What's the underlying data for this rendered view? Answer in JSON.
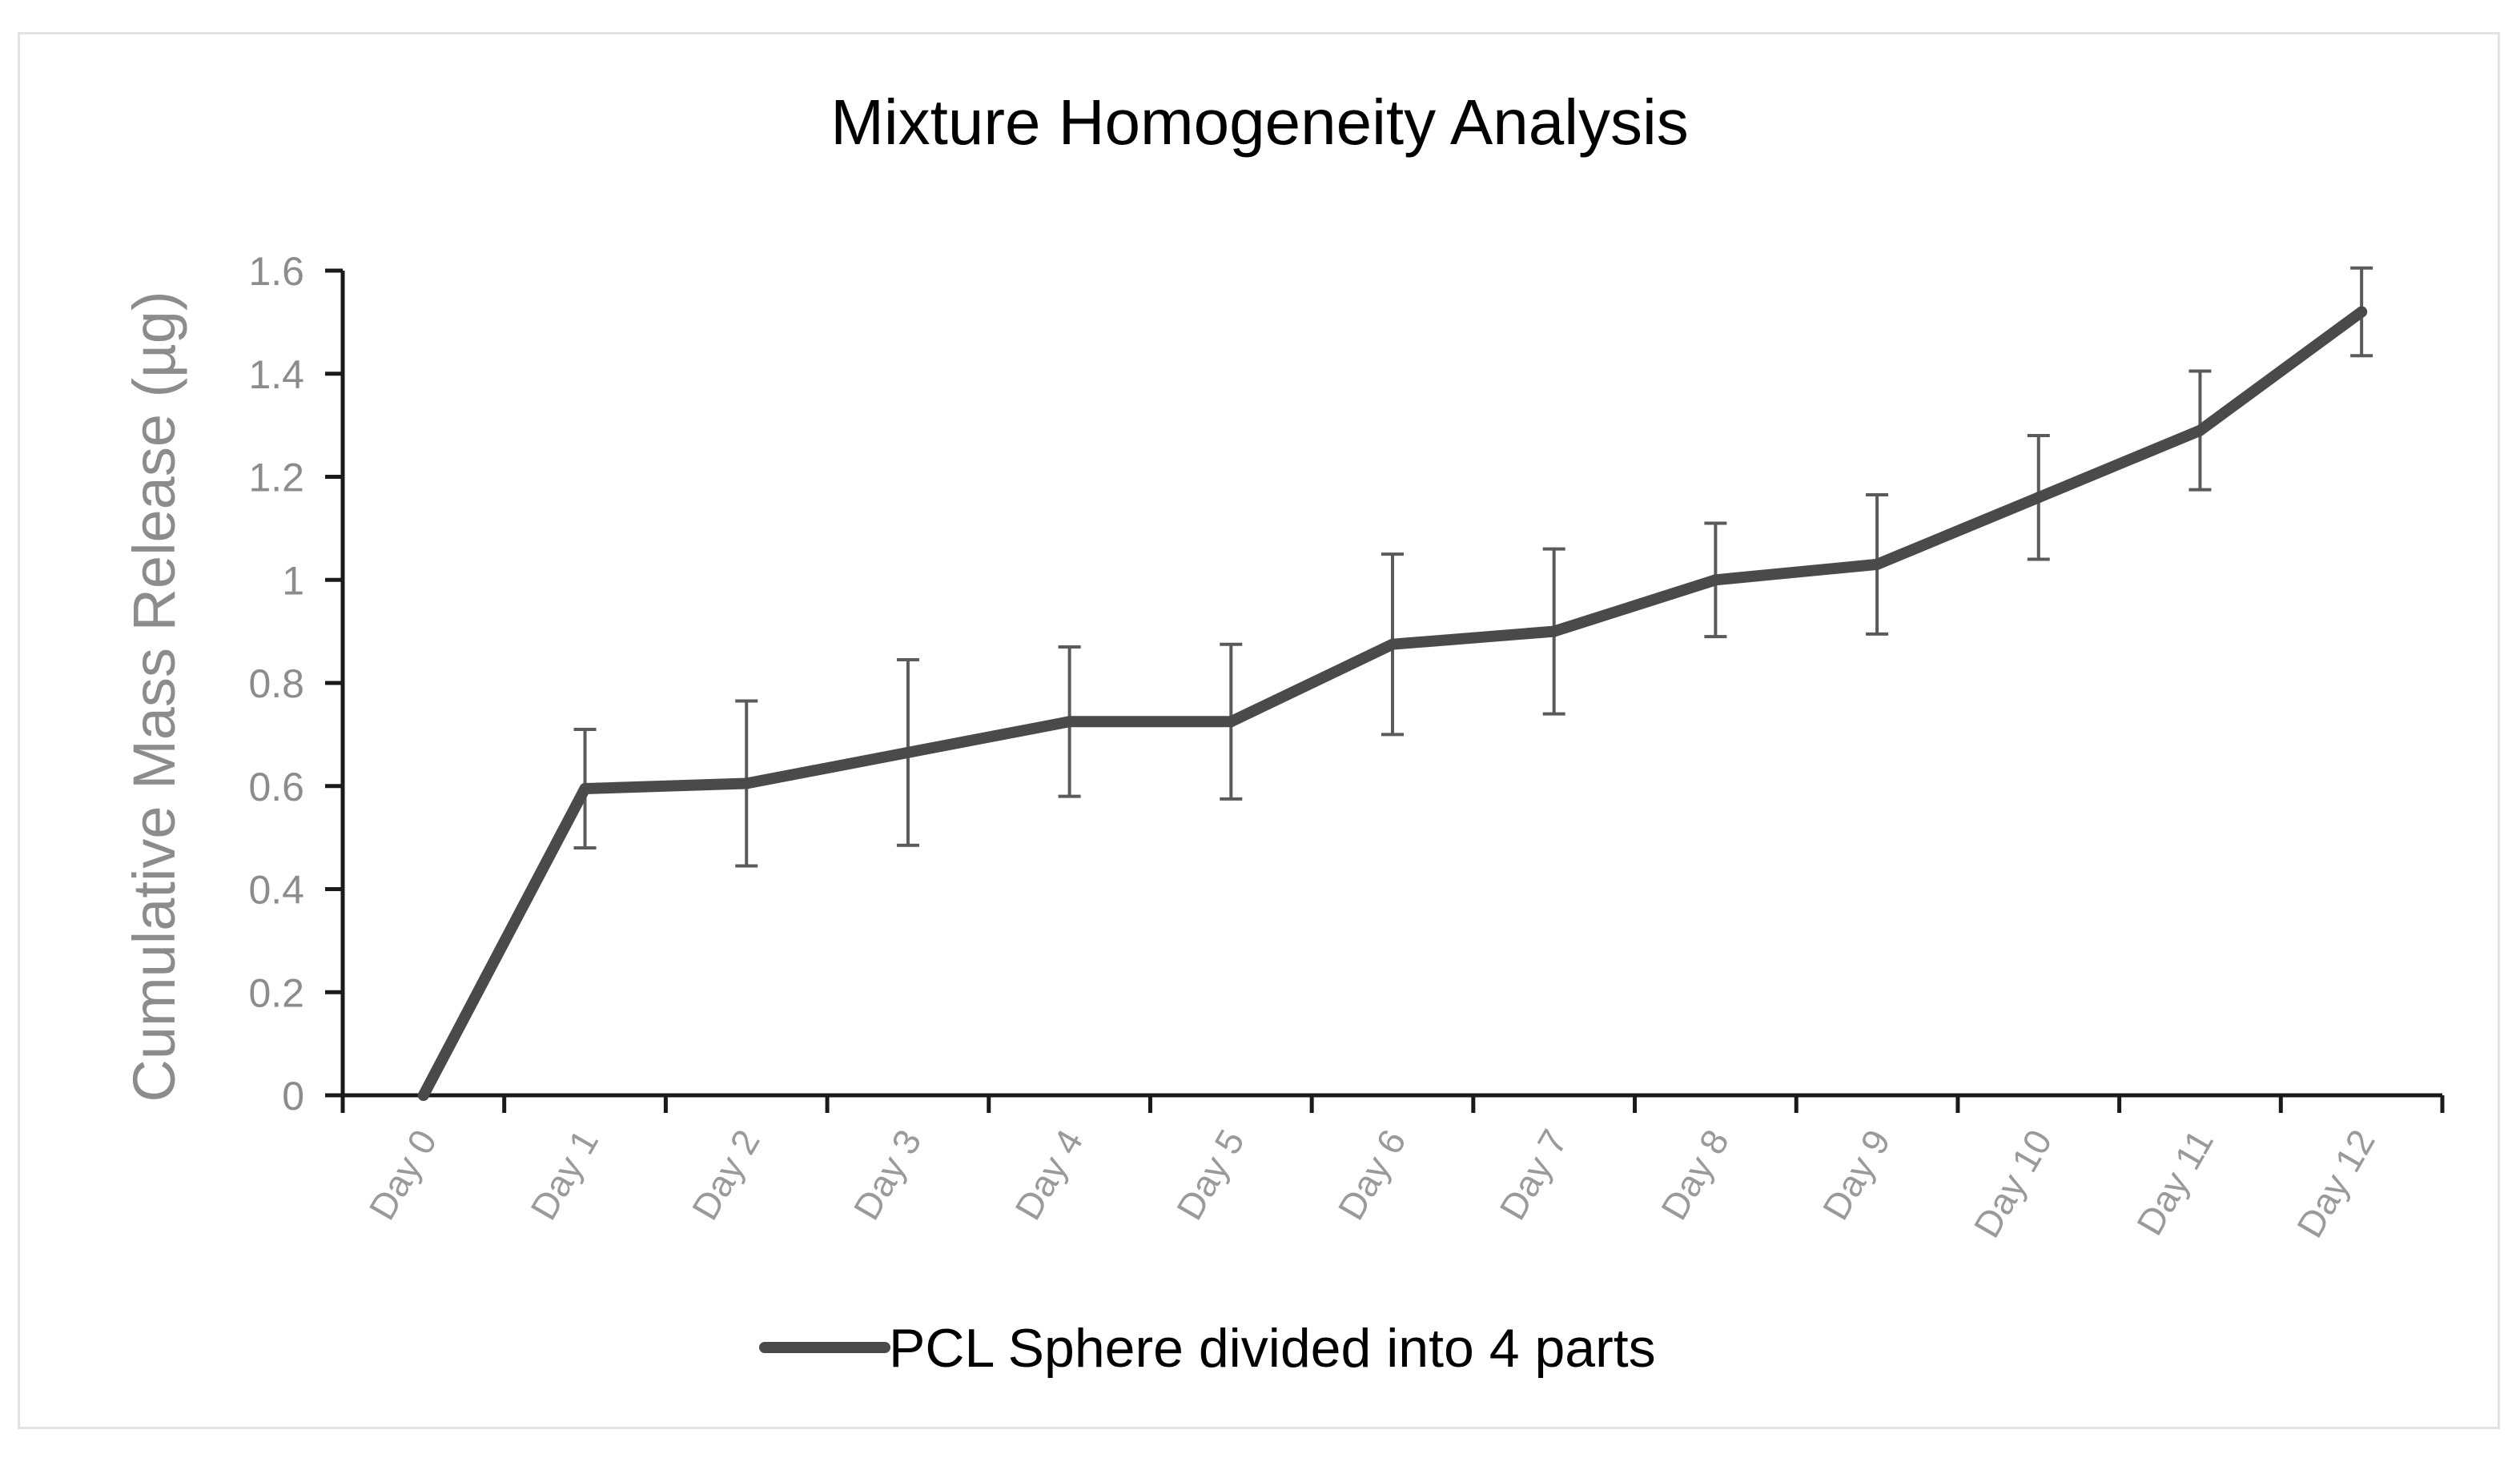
{
  "chart_data": {
    "type": "line",
    "title": "Mixture Homogeneity Analysis",
    "xlabel": "",
    "ylabel": "Cumulative Mass Release (µg)",
    "categories": [
      "Day 0",
      "Day 1",
      "Day 2",
      "Day 3",
      "Day 4",
      "Day 5",
      "Day 6",
      "Day 7",
      "Day 8",
      "Day 9",
      "Day 10",
      "Day 11",
      "Day 12"
    ],
    "yticks": [
      "0",
      "0.2",
      "0.4",
      "0.6",
      "0.8",
      "1",
      "1.2",
      "1.4",
      "1.6"
    ],
    "ylim": [
      0,
      1.6
    ],
    "grid": false,
    "legend_position": "bottom",
    "series": [
      {
        "name": "PCL Sphere divided into 4 parts",
        "color": "#4a4a4a",
        "values": [
          0,
          0.595,
          0.605,
          0.665,
          0.725,
          0.725,
          0.875,
          0.9,
          1.0,
          1.03,
          1.16,
          1.29,
          1.52
        ],
        "error": [
          0,
          0.115,
          0.16,
          0.18,
          0.145,
          0.15,
          0.175,
          0.16,
          0.11,
          0.135,
          0.12,
          0.115,
          0.085
        ]
      }
    ]
  }
}
